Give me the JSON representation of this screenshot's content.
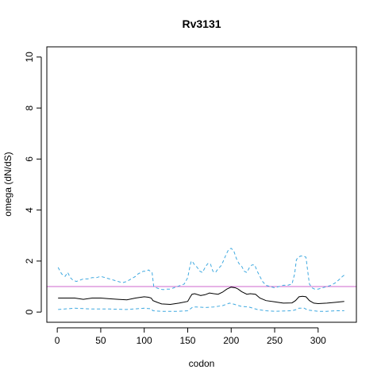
{
  "chart_data": {
    "type": "line",
    "title": "Rv3131",
    "xlabel": "codon",
    "ylabel": "omega (dN/dS)",
    "xlim": [
      -12,
      344
    ],
    "ylim": [
      -0.4,
      10.4
    ],
    "x_ticks": [
      0,
      50,
      100,
      150,
      200,
      250,
      300
    ],
    "y_ticks": [
      0,
      2,
      4,
      6,
      8,
      10
    ],
    "grid": false,
    "legend": "none",
    "reference_line": {
      "y": 1,
      "color": "#cc66cc"
    },
    "series": [
      {
        "role": "upper",
        "style": "dashed",
        "color": "#3fa9e0",
        "x": [
          1,
          5,
          9,
          12,
          15,
          18,
          22,
          26,
          30,
          35,
          40,
          45,
          50,
          55,
          60,
          65,
          70,
          75,
          80,
          85,
          90,
          93,
          96,
          99,
          102,
          105,
          107,
          109,
          111,
          114,
          118,
          122,
          126,
          130,
          134,
          138,
          142,
          146,
          150,
          152,
          154,
          156,
          158,
          161,
          164,
          167,
          170,
          173,
          176,
          179,
          182,
          185,
          188,
          191,
          194,
          197,
          200,
          203,
          206,
          209,
          212,
          215,
          218,
          221,
          224,
          227,
          230,
          233,
          236,
          240,
          245,
          250,
          255,
          260,
          265,
          270,
          273,
          275,
          277,
          280,
          283,
          286,
          288,
          290,
          293,
          296,
          300,
          305,
          310,
          315,
          320,
          325,
          328,
          330
        ],
        "values": [
          1.75,
          1.5,
          1.4,
          1.55,
          1.35,
          1.25,
          1.2,
          1.25,
          1.3,
          1.3,
          1.35,
          1.35,
          1.4,
          1.35,
          1.3,
          1.25,
          1.2,
          1.15,
          1.2,
          1.3,
          1.4,
          1.5,
          1.55,
          1.6,
          1.6,
          1.65,
          1.6,
          1.55,
          1.0,
          0.95,
          0.9,
          0.88,
          0.9,
          0.9,
          0.95,
          1.0,
          1.05,
          1.1,
          1.35,
          1.7,
          2.0,
          1.95,
          1.85,
          1.75,
          1.6,
          1.55,
          1.75,
          1.9,
          1.9,
          1.6,
          1.55,
          1.7,
          1.8,
          2.0,
          2.25,
          2.45,
          2.5,
          2.4,
          2.1,
          1.9,
          1.8,
          1.6,
          1.55,
          1.75,
          1.85,
          1.85,
          1.6,
          1.4,
          1.2,
          1.05,
          1.0,
          0.95,
          1.0,
          1.05,
          1.05,
          1.1,
          1.5,
          2.05,
          2.15,
          2.2,
          2.2,
          2.15,
          1.6,
          1.1,
          0.95,
          0.9,
          0.9,
          0.95,
          1.0,
          1.05,
          1.15,
          1.3,
          1.4,
          1.45
        ]
      },
      {
        "role": "estimate",
        "style": "solid",
        "color": "#000000",
        "x": [
          1,
          10,
          20,
          30,
          40,
          50,
          60,
          70,
          80,
          90,
          100,
          105,
          108,
          110,
          115,
          120,
          130,
          140,
          150,
          153,
          155,
          158,
          165,
          170,
          175,
          180,
          185,
          190,
          195,
          200,
          205,
          208,
          212,
          218,
          222,
          228,
          233,
          240,
          250,
          260,
          270,
          274,
          278,
          282,
          286,
          290,
          295,
          300,
          310,
          320,
          330
        ],
        "values": [
          0.55,
          0.55,
          0.55,
          0.5,
          0.55,
          0.55,
          0.52,
          0.5,
          0.48,
          0.55,
          0.6,
          0.58,
          0.55,
          0.45,
          0.38,
          0.32,
          0.3,
          0.35,
          0.42,
          0.6,
          0.7,
          0.72,
          0.65,
          0.68,
          0.75,
          0.72,
          0.7,
          0.78,
          0.9,
          0.98,
          0.95,
          0.9,
          0.8,
          0.7,
          0.72,
          0.7,
          0.55,
          0.45,
          0.4,
          0.35,
          0.36,
          0.45,
          0.6,
          0.62,
          0.6,
          0.45,
          0.35,
          0.33,
          0.35,
          0.38,
          0.42
        ]
      },
      {
        "role": "lower",
        "style": "dashed",
        "color": "#3fa9e0",
        "x": [
          1,
          20,
          40,
          60,
          80,
          100,
          108,
          110,
          120,
          140,
          150,
          154,
          156,
          160,
          170,
          180,
          190,
          198,
          202,
          206,
          212,
          220,
          230,
          240,
          250,
          270,
          275,
          278,
          284,
          288,
          300,
          310,
          320,
          330
        ],
        "values": [
          0.1,
          0.15,
          0.12,
          0.12,
          0.1,
          0.15,
          0.13,
          0.05,
          0.03,
          0.03,
          0.05,
          0.15,
          0.2,
          0.2,
          0.18,
          0.2,
          0.25,
          0.35,
          0.32,
          0.28,
          0.22,
          0.2,
          0.1,
          0.05,
          0.03,
          0.05,
          0.1,
          0.15,
          0.15,
          0.08,
          0.03,
          0.03,
          0.05,
          0.05
        ]
      }
    ]
  }
}
